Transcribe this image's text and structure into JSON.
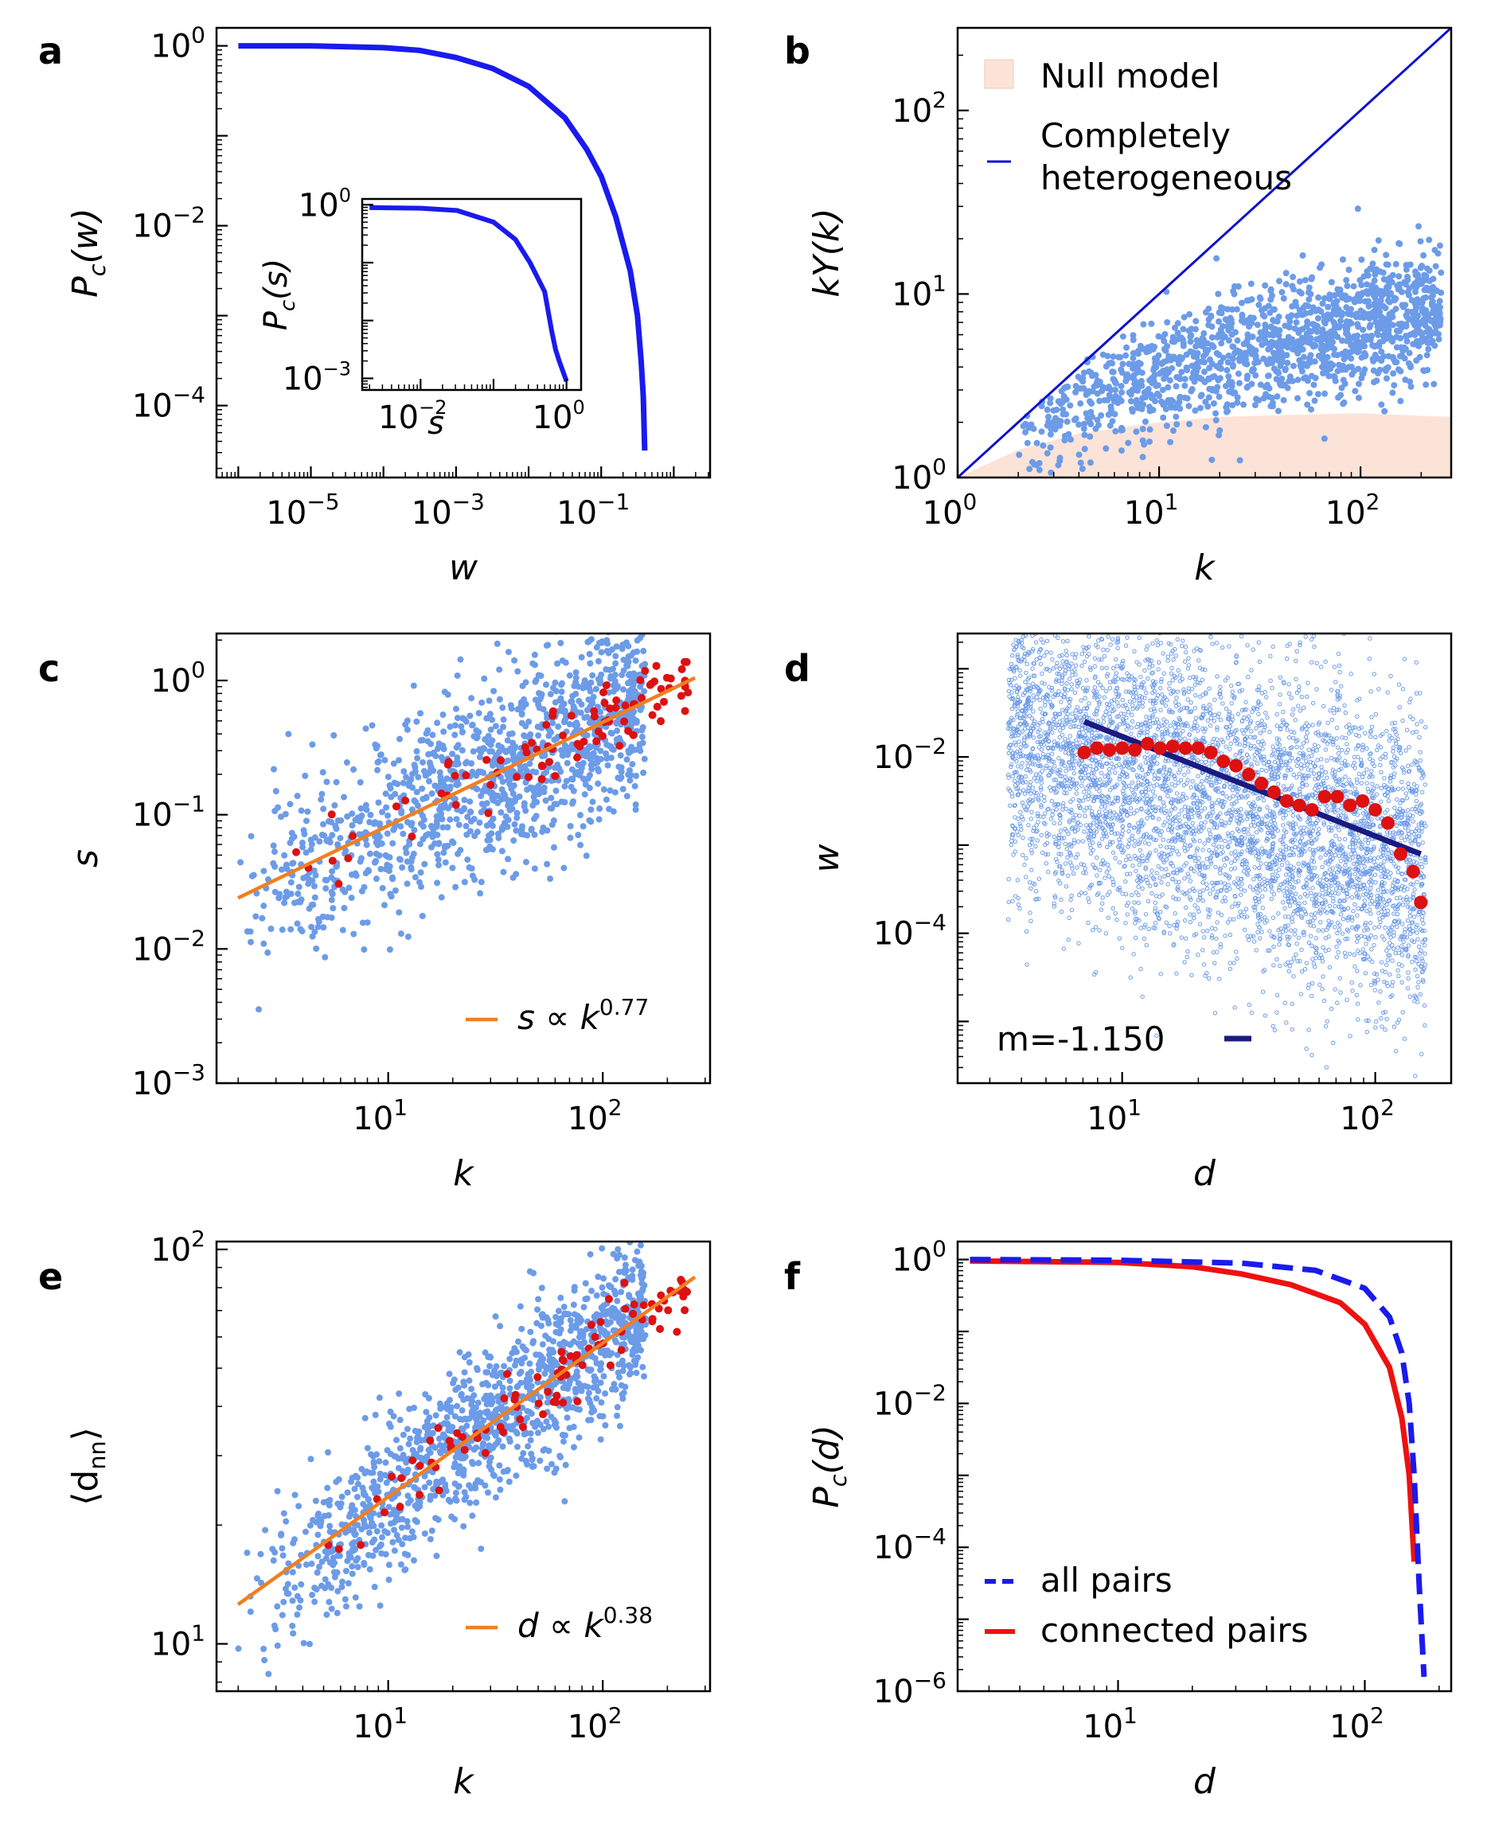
{
  "panels": [
    {
      "id": "a",
      "label": "a",
      "xlabel": {
        "t": "w"
      },
      "ylabel": {
        "t": "P",
        "sub": "c",
        "post": "(w)"
      },
      "xlog": [
        -6.3,
        0.5
      ],
      "ylog": [
        -4.8,
        0.2
      ],
      "xticks": [
        {
          "b": "10",
          "e": "−5",
          "v": -5
        },
        {
          "b": "10",
          "e": "−3",
          "v": -3
        },
        {
          "b": "10",
          "e": "−1",
          "v": -1
        }
      ],
      "yticks": [
        {
          "b": "10",
          "e": "0",
          "v": 0
        },
        {
          "b": "10",
          "e": "−2",
          "v": -2
        },
        {
          "b": "10",
          "e": "−4",
          "v": -4
        }
      ],
      "legend": [],
      "inset": {
        "xlabel": {
          "t": "s"
        },
        "ylabel": {
          "t": "P",
          "sub": "c",
          "post": "(s)"
        },
        "xlog": [
          -2.8,
          0.2
        ],
        "ylog": [
          -3.2,
          0.1
        ],
        "xticks": [
          {
            "b": "10",
            "e": "−2",
            "v": -2
          },
          {
            "b": "10",
            "e": "0",
            "v": 0
          }
        ],
        "yticks": [
          {
            "b": "10",
            "e": "0",
            "v": 0
          },
          {
            "b": "10",
            "e": "−3",
            "v": -3
          }
        ]
      }
    },
    {
      "id": "b",
      "label": "b",
      "xlabel": {
        "t": "k"
      },
      "ylabel": {
        "t": "kY(k)"
      },
      "xlog": [
        0,
        2.45
      ],
      "ylog": [
        0,
        2.45
      ],
      "xticks": [
        {
          "b": "10",
          "e": "0",
          "v": 0
        },
        {
          "b": "10",
          "e": "1",
          "v": 1
        },
        {
          "b": "10",
          "e": "2",
          "v": 2
        }
      ],
      "yticks": [
        {
          "b": "10",
          "e": "0",
          "v": 0
        },
        {
          "b": "10",
          "e": "1",
          "v": 1
        },
        {
          "b": "10",
          "e": "2",
          "v": 2
        }
      ],
      "legend": [
        {
          "label": "Null model",
          "style": "patch"
        },
        {
          "label": "Completely",
          "label2": "heterogeneous",
          "style": "line-thin"
        }
      ]
    },
    {
      "id": "c",
      "label": "c",
      "xlabel": {
        "t": "k"
      },
      "ylabel": {
        "t": "s"
      },
      "xlog": [
        0.2,
        2.5
      ],
      "ylog": [
        -3,
        0.35
      ],
      "xticks": [
        {
          "b": "10",
          "e": "1",
          "v": 1
        },
        {
          "b": "10",
          "e": "2",
          "v": 2
        }
      ],
      "yticks": [
        {
          "b": "10",
          "e": "0",
          "v": 0
        },
        {
          "b": "10",
          "e": "−1",
          "v": -1
        },
        {
          "b": "10",
          "e": "−2",
          "v": -2
        },
        {
          "b": "10",
          "e": "−3",
          "v": -3
        }
      ],
      "legend": [
        {
          "label": "s ∝ k",
          "sup": "0.77",
          "style": "line-orange"
        }
      ]
    },
    {
      "id": "d",
      "label": "d",
      "xlabel": {
        "t": "d"
      },
      "ylabel": {
        "t": "w"
      },
      "xlog": [
        0.35,
        2.3
      ],
      "ylog": [
        -5.7,
        -0.6
      ],
      "xticks": [
        {
          "b": "10",
          "e": "1",
          "v": 1
        },
        {
          "b": "10",
          "e": "2",
          "v": 2
        }
      ],
      "yticks": [
        {
          "b": "10",
          "e": "−2",
          "v": -2
        },
        {
          "b": "10",
          "e": "−4",
          "v": -4
        }
      ],
      "legend": [
        {
          "label": "m=-1.150",
          "style": "line-navy-right"
        }
      ]
    },
    {
      "id": "e",
      "label": "e",
      "xlabel": {
        "t": "k"
      },
      "ylabel": {
        "t": "⟨d",
        "sub": "nn",
        "post": "⟩",
        "upright": true
      },
      "xlog": [
        0.2,
        2.5
      ],
      "ylog": [
        0.88,
        2.02
      ],
      "xticks": [
        {
          "b": "10",
          "e": "1",
          "v": 1
        },
        {
          "b": "10",
          "e": "2",
          "v": 2
        }
      ],
      "yticks": [
        {
          "b": "10",
          "e": "1",
          "v": 1
        },
        {
          "b": "10",
          "e": "2",
          "v": 2
        }
      ],
      "legend": [
        {
          "label": "d ∝ k",
          "sup": "0.38",
          "style": "line-orange"
        }
      ]
    },
    {
      "id": "f",
      "label": "f",
      "xlabel": {
        "t": "d"
      },
      "ylabel": {
        "t": "P",
        "sub": "c",
        "post": "(d)"
      },
      "xlog": [
        0.35,
        2.35
      ],
      "ylog": [
        -6,
        0.25
      ],
      "xticks": [
        {
          "b": "10",
          "e": "1",
          "v": 1
        },
        {
          "b": "10",
          "e": "2",
          "v": 2
        }
      ],
      "yticks": [
        {
          "b": "10",
          "e": "0",
          "v": 0
        },
        {
          "b": "10",
          "e": "−2",
          "v": -2
        },
        {
          "b": "10",
          "e": "−4",
          "v": -4
        },
        {
          "b": "10",
          "e": "−6",
          "v": -6
        }
      ],
      "legend": [
        {
          "label": "all pairs",
          "style": "line-blue-dash"
        },
        {
          "label": "connected pairs",
          "style": "line-red"
        }
      ]
    }
  ],
  "chart_data": [
    {
      "panel": "a",
      "type": "line",
      "xscale": "log",
      "yscale": "log",
      "x_log10": [
        -6,
        -5,
        -4,
        -3.5,
        -3,
        -2.5,
        -2,
        -1.5,
        -1.2,
        -1,
        -0.8,
        -0.6,
        -0.5,
        -0.45,
        -0.42,
        -0.4
      ],
      "y_log10": [
        0,
        0,
        -0.02,
        -0.05,
        -0.13,
        -0.25,
        -0.45,
        -0.8,
        -1.15,
        -1.45,
        -1.9,
        -2.5,
        -3,
        -3.5,
        -3.9,
        -4.5
      ],
      "color": "#1a1aee",
      "inset": {
        "type": "line",
        "xscale": "log",
        "yscale": "log",
        "x_log10": [
          -2.7,
          -2,
          -1.5,
          -1,
          -0.7,
          -0.5,
          -0.3,
          -0.2,
          -0.15,
          -0.1,
          0
        ],
        "y_log10": [
          -0.05,
          -0.06,
          -0.1,
          -0.3,
          -0.6,
          -1,
          -1.5,
          -2.2,
          -2.5,
          -2.7,
          -3.05
        ],
        "color": "#1a1aee"
      }
    },
    {
      "panel": "b",
      "type": "scatter",
      "xscale": "log",
      "yscale": "log",
      "series": [
        {
          "name": "Completely heterogeneous",
          "type": "line",
          "x_log10": [
            0,
            2.45
          ],
          "y_log10": [
            0,
            2.45
          ],
          "color": "#1010cc"
        },
        {
          "name": "Null model",
          "type": "area",
          "x_log10": [
            0,
            0.3,
            0.6,
            1,
            1.3,
            1.6,
            2,
            2.45
          ],
          "y_upper_log10": [
            0,
            0.15,
            0.24,
            0.3,
            0.33,
            0.34,
            0.35,
            0.33
          ],
          "color": "#fbe3d8"
        },
        {
          "type": "scatter",
          "color": "#6c9be8",
          "spread": "k from 2 to ~280, kY(k) from ~1 to ~13, widening with k"
        }
      ]
    },
    {
      "panel": "c",
      "type": "scatter",
      "xscale": "log",
      "yscale": "log",
      "series": [
        {
          "name": "s ∝ k^0.77",
          "type": "line",
          "x_log10": [
            0.3,
            2.43
          ],
          "y_log10": [
            -1.62,
            0.02
          ],
          "color": "#f07f20"
        },
        {
          "type": "scatter",
          "color": "#6c9be8",
          "spread": "k from 2 to ~280, s from ~0.005 to ~1.5"
        },
        {
          "type": "scatter",
          "color": "#dd1111",
          "spread": "binned averages along the fit"
        }
      ]
    },
    {
      "panel": "d",
      "type": "scatter",
      "xscale": "log",
      "yscale": "log",
      "series": [
        {
          "name": "m=-1.150",
          "type": "line",
          "x_log10": [
            0.85,
            2.18
          ],
          "y_log10": [
            -1.6,
            -3.1
          ],
          "color": "#1a1a80"
        },
        {
          "type": "scatter",
          "color": "#6c9be8",
          "spread": "dense cloud of hollow points, d 5–150, w 1e-5 to 5e-1"
        },
        {
          "type": "scatter",
          "color": "#dd1111",
          "x_log10": [
            0.85,
            0.9,
            0.95,
            1.0,
            1.05,
            1.1,
            1.15,
            1.2,
            1.25,
            1.3,
            1.35,
            1.4,
            1.45,
            1.5,
            1.55,
            1.6,
            1.65,
            1.7,
            1.75,
            1.8,
            1.85,
            1.9,
            1.95,
            2.0,
            2.05,
            2.1,
            2.15,
            2.18
          ],
          "y_log10": [
            -1.95,
            -1.9,
            -1.92,
            -1.9,
            -1.92,
            -1.85,
            -1.9,
            -1.88,
            -1.9,
            -1.9,
            -1.95,
            -2.05,
            -2.1,
            -2.2,
            -2.3,
            -2.4,
            -2.5,
            -2.55,
            -2.6,
            -2.45,
            -2.45,
            -2.55,
            -2.5,
            -2.6,
            -2.75,
            -3.1,
            -3.3,
            -3.65
          ]
        }
      ]
    },
    {
      "panel": "e",
      "type": "scatter",
      "xscale": "log",
      "yscale": "log",
      "series": [
        {
          "name": "d ∝ k^0.38",
          "type": "line",
          "x_log10": [
            0.3,
            2.43
          ],
          "y_log10": [
            1.1,
            1.93
          ],
          "color": "#f07f20"
        },
        {
          "type": "scatter",
          "color": "#6c9be8",
          "spread": "k from 2 to ~280, <d_nn> from ~9 to ~100"
        },
        {
          "type": "scatter",
          "color": "#dd1111",
          "spread": "binned averages along the fit"
        }
      ]
    },
    {
      "panel": "f",
      "type": "line",
      "xscale": "log",
      "yscale": "log",
      "series": [
        {
          "name": "all pairs",
          "x_log10": [
            0.4,
            1,
            1.5,
            1.8,
            2,
            2.1,
            2.15,
            2.18,
            2.2,
            2.22,
            2.24
          ],
          "y_log10": [
            0,
            -0.01,
            -0.05,
            -0.15,
            -0.4,
            -0.8,
            -1.3,
            -2,
            -3,
            -4.5,
            -5.8
          ],
          "color": "#1a1aee",
          "dash": true
        },
        {
          "name": "connected pairs",
          "x_log10": [
            0.4,
            1,
            1.3,
            1.5,
            1.7,
            1.9,
            2,
            2.1,
            2.15,
            2.18,
            2.2
          ],
          "y_log10": [
            -0.02,
            -0.04,
            -0.1,
            -0.2,
            -0.35,
            -0.6,
            -0.9,
            -1.5,
            -2.2,
            -3,
            -4.2
          ],
          "color": "#ee1111"
        }
      ]
    }
  ]
}
